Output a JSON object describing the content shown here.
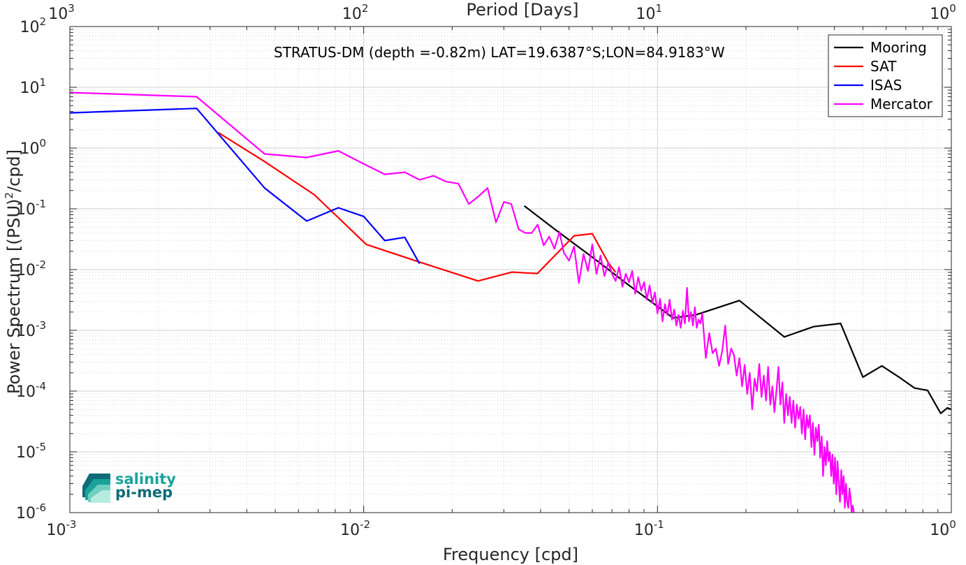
{
  "chart_data": {
    "type": "line",
    "annotation": "STRATUS-DM (depth =-0.82m) LAT=19.6387°S;LON=84.9183°W",
    "xlabel": "Frequency [cpd]",
    "x2label": "Period [Days]",
    "ylabel_parts": [
      "Power Spectrum [(PSU)",
      "2",
      "/cpd]"
    ],
    "xscale": "log",
    "yscale": "log",
    "xlim": [
      0.001,
      1
    ],
    "ylim": [
      1e-06,
      100
    ],
    "grid": true,
    "legend_position": "top-right",
    "x_ticks": [
      {
        "value": 0.001,
        "base": "10",
        "exp": "-3"
      },
      {
        "value": 0.01,
        "base": "10",
        "exp": "-2"
      },
      {
        "value": 0.1,
        "base": "10",
        "exp": "-1"
      },
      {
        "value": 1,
        "base": "10",
        "exp": "0"
      }
    ],
    "x2_ticks": [
      {
        "value": 1000,
        "base": "10",
        "exp": "3"
      },
      {
        "value": 100,
        "base": "10",
        "exp": "2"
      },
      {
        "value": 10,
        "base": "10",
        "exp": "1"
      },
      {
        "value": 1,
        "base": "10",
        "exp": "0"
      }
    ],
    "y_ticks": [
      {
        "value": 100,
        "base": "10",
        "exp": "2"
      },
      {
        "value": 10,
        "base": "10",
        "exp": "1"
      },
      {
        "value": 1,
        "base": "10",
        "exp": "0"
      },
      {
        "value": 0.1,
        "base": "10",
        "exp": "-1"
      },
      {
        "value": 0.01,
        "base": "10",
        "exp": "-2"
      },
      {
        "value": 0.001,
        "base": "10",
        "exp": "-3"
      },
      {
        "value": 0.0001,
        "base": "10",
        "exp": "-4"
      },
      {
        "value": 1e-05,
        "base": "10",
        "exp": "-5"
      },
      {
        "value": 1e-06,
        "base": "10",
        "exp": "-6"
      }
    ],
    "series": [
      {
        "name": "Mooring",
        "color": "#000000",
        "points": [
          [
            0.0352,
            0.112
          ],
          [
            0.045,
            0.045
          ],
          [
            0.06,
            0.016
          ],
          [
            0.08,
            0.0055
          ],
          [
            0.113,
            0.0016
          ],
          [
            0.135,
            0.0018
          ],
          [
            0.19,
            0.0031
          ],
          [
            0.27,
            0.00078
          ],
          [
            0.34,
            0.00115
          ],
          [
            0.42,
            0.0013
          ],
          [
            0.5,
            0.00017
          ],
          [
            0.58,
            0.00026
          ],
          [
            0.67,
            0.000165
          ],
          [
            0.75,
            0.000112
          ],
          [
            0.83,
            0.000103
          ],
          [
            0.92,
            4.3e-05
          ],
          [
            0.97,
            5.3e-05
          ],
          [
            1.0,
            5e-05
          ]
        ]
      },
      {
        "name": "SAT",
        "color": "#ff0000",
        "points": [
          [
            0.0032,
            1.8
          ],
          [
            0.0046,
            0.6
          ],
          [
            0.0068,
            0.17
          ],
          [
            0.0102,
            0.026
          ],
          [
            0.015,
            0.014
          ],
          [
            0.0245,
            0.0065
          ],
          [
            0.032,
            0.0091
          ],
          [
            0.039,
            0.0086
          ],
          [
            0.052,
            0.036
          ],
          [
            0.06,
            0.039
          ],
          [
            0.068,
            0.013
          ],
          [
            0.072,
            0.009
          ]
        ]
      },
      {
        "name": "ISAS",
        "color": "#0000ff",
        "points": [
          [
            0.001,
            3.8
          ],
          [
            0.0027,
            4.5
          ],
          [
            0.0046,
            0.22
          ],
          [
            0.0064,
            0.063
          ],
          [
            0.0082,
            0.104
          ],
          [
            0.01,
            0.075
          ],
          [
            0.0118,
            0.03
          ],
          [
            0.0138,
            0.034
          ],
          [
            0.0155,
            0.0125
          ]
        ]
      },
      {
        "name": "Mercator",
        "color": "#ff00ff",
        "points": [
          [
            0.001,
            8.2
          ],
          [
            0.0027,
            7.0
          ],
          [
            0.0046,
            0.8
          ],
          [
            0.0064,
            0.7
          ],
          [
            0.0082,
            0.9
          ],
          [
            0.01,
            0.55
          ],
          [
            0.0118,
            0.37
          ],
          [
            0.0138,
            0.4
          ],
          [
            0.0155,
            0.3
          ],
          [
            0.0173,
            0.35
          ],
          [
            0.0191,
            0.28
          ],
          [
            0.021,
            0.26
          ],
          [
            0.0228,
            0.12
          ],
          [
            0.0246,
            0.16
          ],
          [
            0.0264,
            0.22
          ],
          [
            0.0282,
            0.06
          ],
          [
            0.03,
            0.13
          ],
          [
            0.0318,
            0.12
          ],
          [
            0.0337,
            0.046
          ],
          [
            0.0355,
            0.04
          ],
          [
            0.0373,
            0.04
          ],
          [
            0.0391,
            0.055
          ],
          [
            0.041,
            0.025
          ],
          [
            0.0428,
            0.035
          ],
          [
            0.0446,
            0.022
          ],
          [
            0.0464,
            0.042
          ],
          [
            0.048,
            0.019
          ],
          [
            0.05,
            0.014
          ],
          [
            0.052,
            0.024
          ],
          [
            0.054,
            0.006
          ],
          [
            0.056,
            0.018
          ],
          [
            0.058,
            0.0095
          ],
          [
            0.06,
            0.026
          ],
          [
            0.062,
            0.0085
          ],
          [
            0.064,
            0.017
          ],
          [
            0.066,
            0.0078
          ],
          [
            0.068,
            0.013
          ],
          [
            0.07,
            0.0085
          ],
          [
            0.072,
            0.0065
          ],
          [
            0.074,
            0.011
          ],
          [
            0.076,
            0.0052
          ],
          [
            0.078,
            0.0085
          ],
          [
            0.08,
            0.0062
          ],
          [
            0.082,
            0.0095
          ],
          [
            0.084,
            0.004
          ],
          [
            0.086,
            0.0075
          ],
          [
            0.088,
            0.0045
          ],
          [
            0.09,
            0.0062
          ],
          [
            0.092,
            0.0032
          ],
          [
            0.094,
            0.0055
          ],
          [
            0.096,
            0.0028
          ],
          [
            0.098,
            0.0042
          ],
          [
            0.1,
            0.0019
          ],
          [
            0.102,
            0.0033
          ],
          [
            0.104,
            0.0014
          ],
          [
            0.106,
            0.0027
          ],
          [
            0.108,
            0.0018
          ],
          [
            0.11,
            0.0032
          ],
          [
            0.112,
            0.0015
          ],
          [
            0.114,
            0.0022
          ],
          [
            0.116,
            0.0012
          ],
          [
            0.118,
            0.0018
          ],
          [
            0.12,
            0.0011
          ],
          [
            0.122,
            0.0021
          ],
          [
            0.124,
            0.0013
          ],
          [
            0.126,
            0.005
          ],
          [
            0.128,
            0.0014
          ],
          [
            0.13,
            0.002
          ],
          [
            0.132,
            0.0012
          ],
          [
            0.134,
            0.0024
          ],
          [
            0.136,
            0.0011
          ],
          [
            0.138,
            0.0015
          ],
          [
            0.14,
            0.0013
          ],
          [
            0.142,
            0.0019
          ],
          [
            0.146,
            0.00035
          ],
          [
            0.15,
            0.0009
          ],
          [
            0.154,
            0.00042
          ],
          [
            0.158,
            0.0005
          ],
          [
            0.162,
            0.00026
          ],
          [
            0.166,
            0.00045
          ],
          [
            0.17,
            0.0012
          ],
          [
            0.174,
            0.00028
          ],
          [
            0.178,
            0.0005
          ],
          [
            0.182,
            0.0004
          ],
          [
            0.186,
            0.00018
          ],
          [
            0.19,
            0.00035
          ],
          [
            0.194,
            0.00012
          ],
          [
            0.198,
            0.00027
          ],
          [
            0.202,
            9e-05
          ],
          [
            0.206,
            0.0002
          ],
          [
            0.21,
            5e-05
          ],
          [
            0.214,
            0.00016
          ],
          [
            0.218,
            0.0001
          ],
          [
            0.222,
            0.00028
          ],
          [
            0.226,
            8e-05
          ],
          [
            0.23,
            0.00018
          ],
          [
            0.234,
            7e-05
          ],
          [
            0.238,
            0.00025
          ],
          [
            0.242,
            6e-05
          ],
          [
            0.246,
            0.00012
          ],
          [
            0.25,
            4.5e-05
          ],
          [
            0.254,
            0.0001
          ],
          [
            0.258,
            0.00025
          ],
          [
            0.262,
            6e-05
          ],
          [
            0.266,
            0.00014
          ],
          [
            0.27,
            3e-05
          ],
          [
            0.274,
            9e-05
          ],
          [
            0.278,
            4e-05
          ],
          [
            0.282,
            8e-05
          ],
          [
            0.286,
            3e-05
          ],
          [
            0.29,
            7e-05
          ],
          [
            0.294,
            2.5e-05
          ],
          [
            0.298,
            6e-05
          ],
          [
            0.302,
            3.5e-05
          ],
          [
            0.306,
            5.5e-05
          ],
          [
            0.31,
            2e-05
          ],
          [
            0.314,
            5e-05
          ],
          [
            0.318,
            1.6e-05
          ],
          [
            0.322,
            4e-05
          ],
          [
            0.326,
            2.5e-05
          ],
          [
            0.33,
            4e-05
          ],
          [
            0.334,
            1.2e-05
          ],
          [
            0.338,
            3e-05
          ],
          [
            0.342,
            9e-06
          ],
          [
            0.346,
            2.5e-05
          ],
          [
            0.35,
            1.5e-05
          ],
          [
            0.354,
            2.8e-05
          ],
          [
            0.358,
            8e-06
          ],
          [
            0.362,
            1.8e-05
          ],
          [
            0.366,
            4e-06
          ],
          [
            0.37,
            1.2e-05
          ],
          [
            0.374,
            6e-06
          ],
          [
            0.378,
            1.5e-05
          ],
          [
            0.382,
            7e-06
          ],
          [
            0.386,
            1e-05
          ],
          [
            0.39,
            4e-06
          ],
          [
            0.394,
            9e-06
          ],
          [
            0.398,
            3e-06
          ],
          [
            0.402,
            8e-06
          ],
          [
            0.406,
            2e-06
          ],
          [
            0.41,
            7e-06
          ],
          [
            0.414,
            3e-06
          ],
          [
            0.418,
            1.5e-06
          ],
          [
            0.422,
            5e-06
          ],
          [
            0.426,
            2e-06
          ],
          [
            0.43,
            4e-06
          ],
          [
            0.434,
            1.2e-06
          ],
          [
            0.438,
            3e-06
          ],
          [
            0.442,
            1.5e-06
          ],
          [
            0.446,
            1.2e-06
          ],
          [
            0.45,
            2.5e-06
          ],
          [
            0.454,
            1.8e-06
          ],
          [
            0.458,
            1e-06
          ],
          [
            0.462,
            1.3e-06
          ],
          [
            0.466,
            1e-06
          ]
        ]
      }
    ]
  },
  "logo": {
    "line1": "salinity",
    "line2": "pi-mep",
    "color_primary": "#1aa39b",
    "color_secondary": "#0f6b78"
  }
}
